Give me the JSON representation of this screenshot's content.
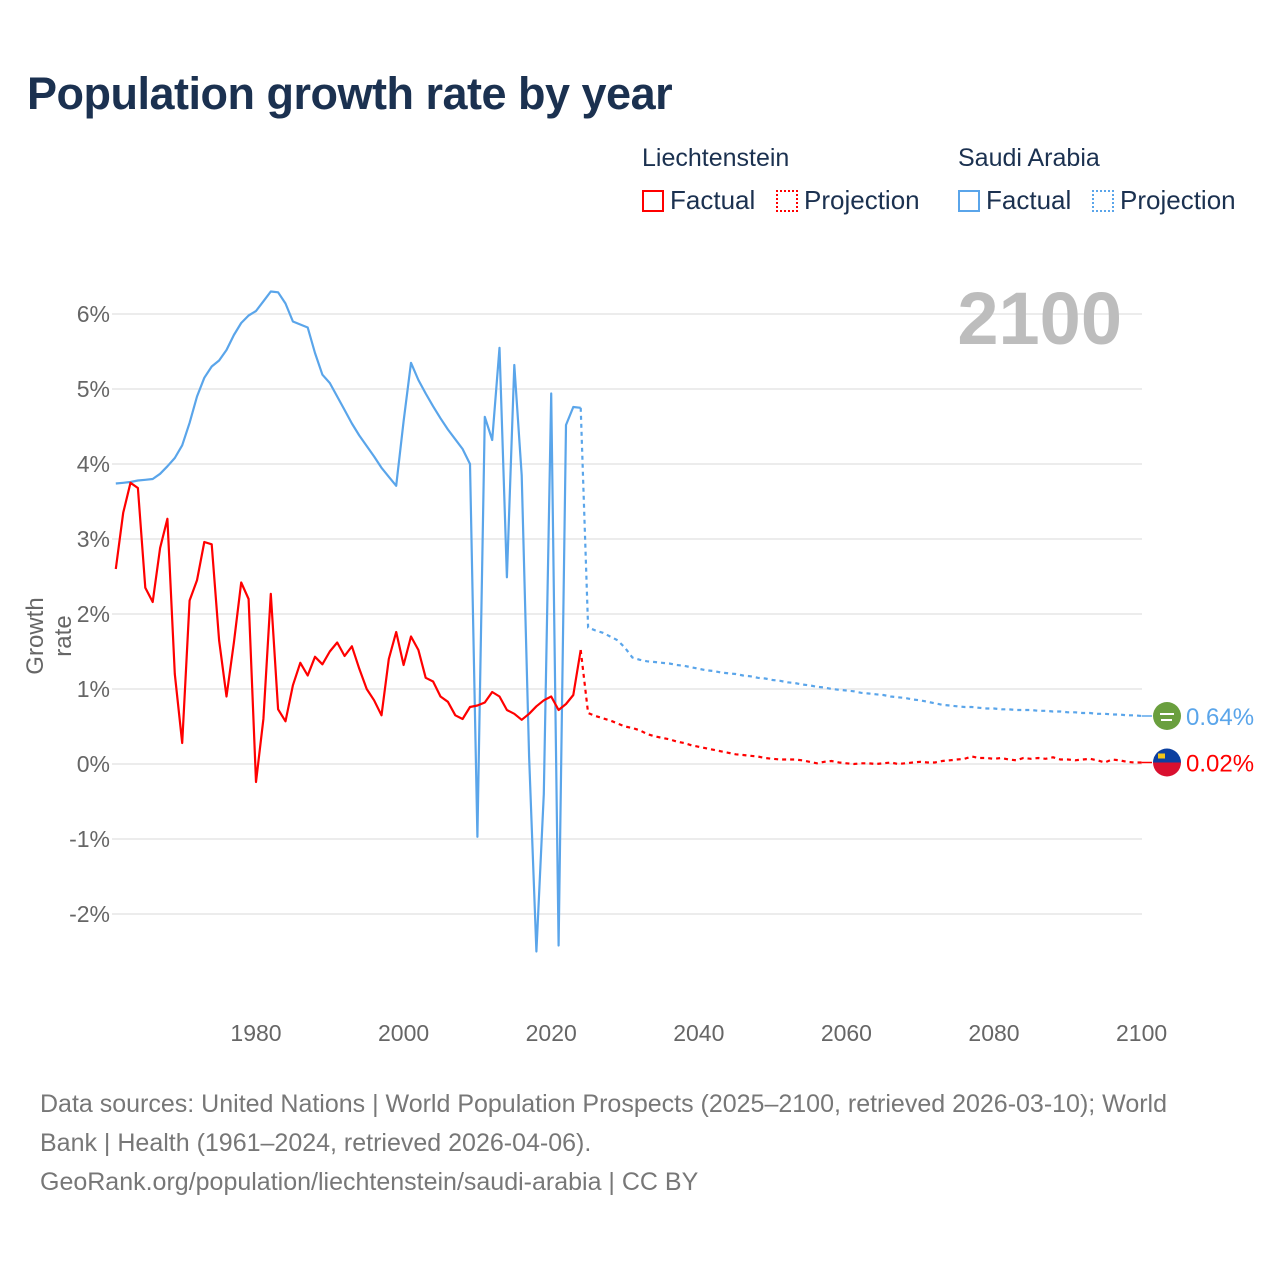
{
  "title": "Population growth rate by year",
  "legend": {
    "groups": [
      {
        "country": "Liechtenstein",
        "factual": "Factual",
        "projection": "Projection",
        "color": "#ff0000"
      },
      {
        "country": "Saudi Arabia",
        "factual": "Factual",
        "projection": "Projection",
        "color": "#5aa5ea"
      }
    ]
  },
  "current_year": "2100",
  "footer": {
    "line1": "Data sources: United Nations | World Population Prospects (2025–2100, retrieved 2026-03-10); World",
    "line2": "Bank | Health (1961–2024, retrieved 2026-04-06).",
    "line3": "GeoRank.org/population/liechtenstein/saudi-arabia | CC BY"
  },
  "chart_data": {
    "type": "line",
    "title": "Population growth rate by year",
    "xlabel": "",
    "ylabel": "Growth rate",
    "xlim": [
      1961,
      2100
    ],
    "ylim": [
      -3,
      6.5
    ],
    "x_ticks": [
      1980,
      2000,
      2020,
      2040,
      2060,
      2080,
      2100
    ],
    "y_ticks": [
      {
        "v": 6,
        "label": "6%"
      },
      {
        "v": 5,
        "label": "5%"
      },
      {
        "v": 4,
        "label": "4%"
      },
      {
        "v": 3,
        "label": "3%"
      },
      {
        "v": 2,
        "label": "2%"
      },
      {
        "v": 1,
        "label": "1%"
      },
      {
        "v": 0,
        "label": "0%"
      },
      {
        "v": -1,
        "label": "-1%"
      },
      {
        "v": -2,
        "label": "-2%"
      }
    ],
    "grid": true,
    "legend_position": "top-right",
    "series": [
      {
        "name": "Saudi Arabia",
        "color": "#5aa5ea",
        "end_label": "0.64%",
        "factual_start": 1961,
        "factual": [
          3.74,
          3.75,
          3.76,
          3.78,
          3.79,
          3.8,
          3.87,
          3.97,
          4.08,
          4.25,
          4.55,
          4.9,
          5.15,
          5.3,
          5.38,
          5.52,
          5.72,
          5.88,
          5.98,
          6.04,
          6.17,
          6.3,
          6.29,
          6.14,
          5.9,
          5.86,
          5.82,
          5.48,
          5.19,
          5.08,
          4.9,
          4.72,
          4.54,
          4.38,
          4.24,
          4.1,
          3.95,
          3.83,
          3.71,
          4.57,
          5.35,
          5.12,
          4.94,
          4.77,
          4.61,
          4.46,
          4.33,
          4.2,
          4.0,
          -0.97,
          4.63,
          4.32,
          5.55,
          2.49,
          5.32,
          3.85,
          0.1,
          -2.5,
          -0.4,
          4.94,
          -2.42,
          4.52,
          4.76,
          4.75
        ],
        "projection_start": 2025,
        "projection": [
          1.82,
          1.78,
          1.75,
          1.7,
          1.65,
          1.55,
          1.42,
          1.39,
          1.37,
          1.36,
          1.35,
          1.34,
          1.32,
          1.31,
          1.29,
          1.27,
          1.25,
          1.24,
          1.22,
          1.21,
          1.2,
          1.18,
          1.17,
          1.15,
          1.14,
          1.12,
          1.11,
          1.09,
          1.08,
          1.06,
          1.05,
          1.03,
          1.02,
          1.0,
          0.99,
          0.98,
          0.97,
          0.95,
          0.94,
          0.93,
          0.92,
          0.9,
          0.89,
          0.88,
          0.86,
          0.85,
          0.83,
          0.81,
          0.79,
          0.78,
          0.77,
          0.76,
          0.76,
          0.75,
          0.74,
          0.74,
          0.73,
          0.73,
          0.72,
          0.72,
          0.72,
          0.71,
          0.71,
          0.7,
          0.7,
          0.69,
          0.69,
          0.68,
          0.68,
          0.67,
          0.67,
          0.66,
          0.66,
          0.65,
          0.65,
          0.64
        ]
      },
      {
        "name": "Liechtenstein",
        "color": "#ff0000",
        "end_label": "0.02%",
        "factual_start": 1961,
        "factual": [
          2.6,
          3.35,
          3.75,
          3.68,
          2.35,
          2.16,
          2.88,
          3.27,
          1.2,
          0.28,
          2.18,
          2.45,
          2.96,
          2.93,
          1.65,
          0.9,
          1.62,
          2.42,
          2.2,
          -0.24,
          0.6,
          2.27,
          0.73,
          0.57,
          1.05,
          1.35,
          1.18,
          1.43,
          1.33,
          1.5,
          1.62,
          1.44,
          1.57,
          1.27,
          1.0,
          0.85,
          0.65,
          1.4,
          1.76,
          1.32,
          1.7,
          1.52,
          1.15,
          1.1,
          0.9,
          0.83,
          0.65,
          0.6,
          0.76,
          0.78,
          0.82,
          0.96,
          0.9,
          0.72,
          0.67,
          0.59,
          0.67,
          0.77,
          0.85,
          0.9,
          0.72,
          0.8,
          0.92,
          1.52
        ],
        "projection_start": 2025,
        "projection": [
          0.68,
          0.64,
          0.61,
          0.58,
          0.54,
          0.5,
          0.48,
          0.45,
          0.4,
          0.37,
          0.35,
          0.33,
          0.3,
          0.28,
          0.25,
          0.23,
          0.21,
          0.19,
          0.17,
          0.15,
          0.13,
          0.12,
          0.11,
          0.1,
          0.08,
          0.07,
          0.06,
          0.06,
          0.06,
          0.05,
          0.03,
          0.01,
          0.03,
          0.04,
          0.02,
          0.01,
          0.0,
          0.01,
          0.01,
          0.0,
          0.01,
          0.02,
          0.0,
          0.01,
          0.02,
          0.03,
          0.02,
          0.02,
          0.04,
          0.05,
          0.06,
          0.07,
          0.1,
          0.08,
          0.08,
          0.07,
          0.08,
          0.06,
          0.05,
          0.08,
          0.07,
          0.08,
          0.07,
          0.09,
          0.06,
          0.06,
          0.05,
          0.06,
          0.07,
          0.05,
          0.02,
          0.06,
          0.05,
          0.03,
          0.02,
          0.02
        ]
      }
    ]
  }
}
